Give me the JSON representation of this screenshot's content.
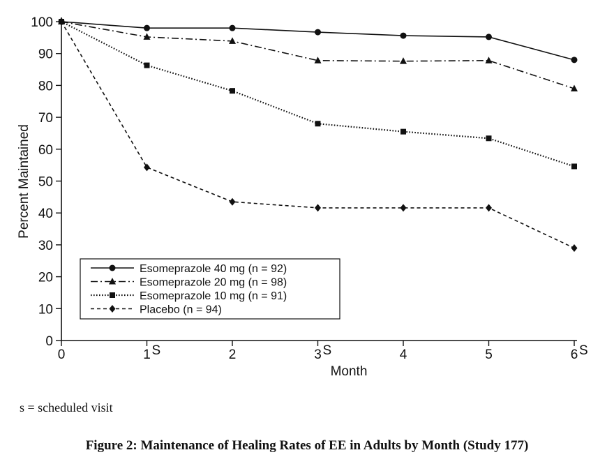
{
  "chart_data": {
    "type": "line",
    "xlabel": "Month",
    "ylabel": "Percent Maintained",
    "x": [
      0,
      1,
      2,
      3,
      4,
      5,
      6
    ],
    "x_tick_labels": [
      {
        "value": 0,
        "label": "0",
        "sup": ""
      },
      {
        "value": 1,
        "label": "1",
        "sup": "S"
      },
      {
        "value": 2,
        "label": "2",
        "sup": ""
      },
      {
        "value": 3,
        "label": "3",
        "sup": "S"
      },
      {
        "value": 4,
        "label": "4",
        "sup": ""
      },
      {
        "value": 5,
        "label": "5",
        "sup": ""
      },
      {
        "value": 6,
        "label": "6",
        "sup": "S"
      }
    ],
    "y_ticks": [
      0,
      10,
      20,
      30,
      40,
      50,
      60,
      70,
      80,
      90,
      100
    ],
    "xlim": [
      0,
      6
    ],
    "ylim": [
      0,
      100
    ],
    "grid": false,
    "legend_position": "bottom-left",
    "series": [
      {
        "name": "Esomeprazole 40 mg (n = 92)",
        "marker": "circle",
        "dash": "solid",
        "values": [
          100,
          98,
          98,
          96.7,
          95.6,
          95.2,
          88
        ]
      },
      {
        "name": "Esomeprazole 20 mg (n = 98)",
        "marker": "triangle",
        "dash": "dashdot",
        "values": [
          100,
          95.2,
          93.9,
          87.8,
          87.6,
          87.8,
          79
        ]
      },
      {
        "name": "Esomeprazole 10 mg (n = 91)",
        "marker": "square",
        "dash": "dotted",
        "values": [
          100,
          86.3,
          78.3,
          68,
          65.5,
          63.4,
          54.6
        ]
      },
      {
        "name": "Placebo (n = 94)",
        "marker": "diamond",
        "dash": "dashed",
        "values": [
          100,
          54.3,
          43.5,
          41.6,
          41.6,
          41.6,
          29
        ]
      }
    ]
  },
  "footnote": "s = scheduled visit",
  "caption": "Figure 2: Maintenance of Healing Rates of EE in Adults by Month (Study 177)"
}
